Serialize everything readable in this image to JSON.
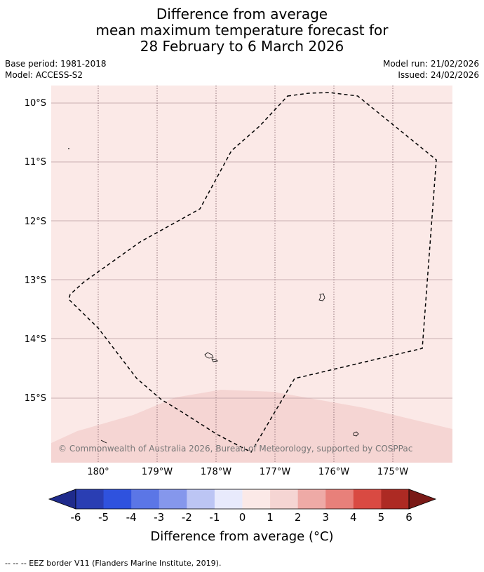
{
  "header": {
    "title_line1": "Difference from average",
    "title_line2": "mean maximum temperature forecast for",
    "title_line3": "28 February to 6 March 2026",
    "base_period": "Base period: 1981-2018",
    "model": "Model: ACCESS-S2",
    "model_run": "Model run: 21/02/2026",
    "issued": "Issued: 24/02/2026"
  },
  "map": {
    "lat_labels": [
      "10°S",
      "11°S",
      "12°S",
      "13°S",
      "14°S",
      "15°S"
    ],
    "lon_labels": [
      "180°",
      "179°W",
      "178°W",
      "177°W",
      "176°W",
      "175°W"
    ],
    "copyright": "© Commonwealth of Australia 2026, Bureau of Meteorology, supported by COSPPac",
    "colors": {
      "background_anomaly": "#fbe9e7",
      "warmer_anomaly": "#f5d5d3",
      "eez_line": "#000000",
      "grid": "#b89aa0"
    }
  },
  "colorbar": {
    "ticks": [
      "-6",
      "-5",
      "-4",
      "-3",
      "-2",
      "-1",
      "0",
      "1",
      "2",
      "3",
      "4",
      "5",
      "6"
    ],
    "colors": [
      "#1f2b8c",
      "#2a3eb3",
      "#2f52de",
      "#5b76e6",
      "#8597ec",
      "#bcc5f4",
      "#e8eafc",
      "#fbe9e7",
      "#f5d5d3",
      "#eeaaa6",
      "#e8807a",
      "#d94a42",
      "#ad2a23",
      "#7a1a17"
    ],
    "label": "Difference from average (°C)"
  },
  "footnote": "--  --  -- EEZ border V11 (Flanders Marine Institute, 2019)."
}
